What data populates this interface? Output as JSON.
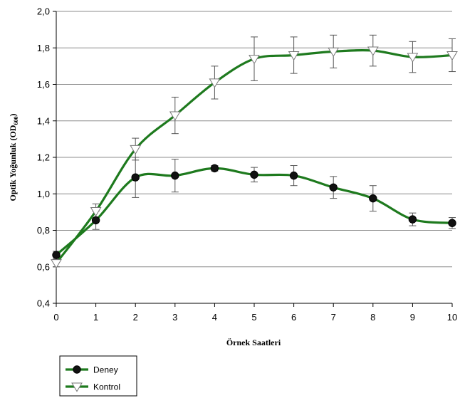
{
  "chart_data": {
    "type": "line",
    "title": "",
    "xlabel": "Örnek Saatleri",
    "ylabel_main": "Optik Yoğunluk (OD",
    "ylabel_sub": "600",
    "ylabel_end": ")",
    "x": [
      0,
      1,
      2,
      3,
      4,
      5,
      6,
      7,
      8,
      9,
      10
    ],
    "x_tick_labels": [
      "0",
      "1",
      "2",
      "3",
      "4",
      "5",
      "6",
      "7",
      "8",
      "9",
      "10"
    ],
    "y_tick_values": [
      0.4,
      0.6,
      0.8,
      1.0,
      1.2,
      1.4,
      1.6,
      1.8,
      2.0
    ],
    "y_tick_labels": [
      "0,4",
      "0,6",
      "0,8",
      "1,0",
      "1,2",
      "1,4",
      "1,6",
      "1,8",
      "2,0"
    ],
    "xlim": [
      0,
      10
    ],
    "ylim": [
      0.4,
      2.0
    ],
    "grid": "horizontal",
    "legend_position": "bottom-left",
    "line_color": "#1e7a1e",
    "series": [
      {
        "name": "Deney",
        "marker": "circle",
        "values": [
          0.665,
          0.855,
          1.09,
          1.1,
          1.14,
          1.105,
          1.1,
          1.035,
          0.975,
          0.86,
          0.84
        ],
        "errors": [
          0.02,
          0.05,
          0.11,
          0.09,
          0.015,
          0.04,
          0.055,
          0.06,
          0.07,
          0.035,
          0.03
        ]
      },
      {
        "name": "Kontrol",
        "marker": "triangle-down",
        "values": [
          0.62,
          0.905,
          1.245,
          1.43,
          1.61,
          1.74,
          1.76,
          1.78,
          1.785,
          1.75,
          1.76
        ],
        "errors": [
          0.02,
          0.04,
          0.06,
          0.1,
          0.09,
          0.12,
          0.1,
          0.09,
          0.085,
          0.085,
          0.09
        ]
      }
    ]
  }
}
